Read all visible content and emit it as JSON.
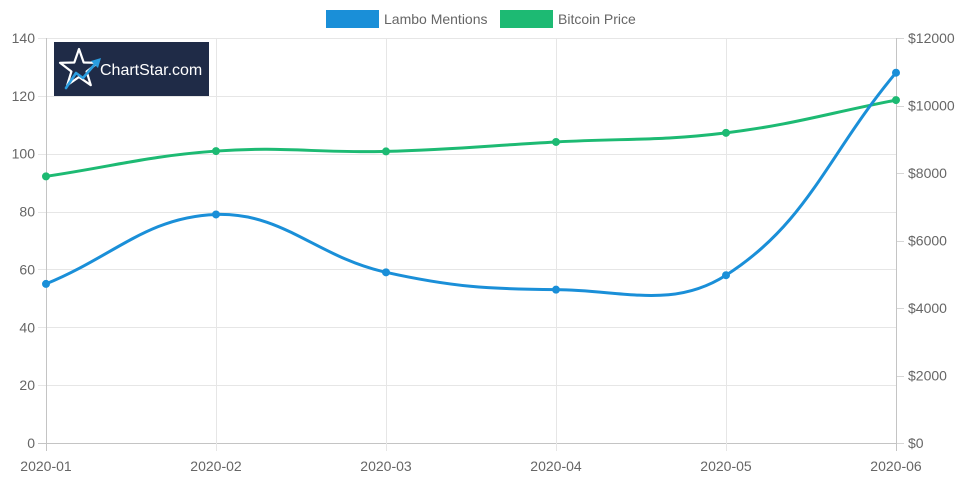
{
  "chart_data": {
    "type": "line",
    "categories": [
      "2020-01",
      "2020-02",
      "2020-03",
      "2020-04",
      "2020-05",
      "2020-06"
    ],
    "series": [
      {
        "name": "Lambo Mentions",
        "axis": "left",
        "color": "#1a8fd8",
        "values": [
          55,
          79,
          59,
          53,
          58,
          128
        ]
      },
      {
        "name": "Bitcoin Price",
        "axis": "right",
        "color": "#1dba73",
        "values": [
          7900,
          8650,
          8640,
          8920,
          9190,
          10160
        ]
      }
    ],
    "y_left": {
      "range": [
        0,
        140
      ],
      "ticks": [
        "0",
        "20",
        "40",
        "60",
        "80",
        "100",
        "120",
        "140"
      ]
    },
    "y_right": {
      "range": [
        0,
        12000
      ],
      "ticks": [
        "$0",
        "$2000",
        "$4000",
        "$6000",
        "$8000",
        "$10000",
        "$12000"
      ]
    },
    "grid": true,
    "legend": "top-center"
  },
  "logo": {
    "text": "ChartStar.com",
    "background": "#1f2b47",
    "accent": "#2a9de0"
  }
}
